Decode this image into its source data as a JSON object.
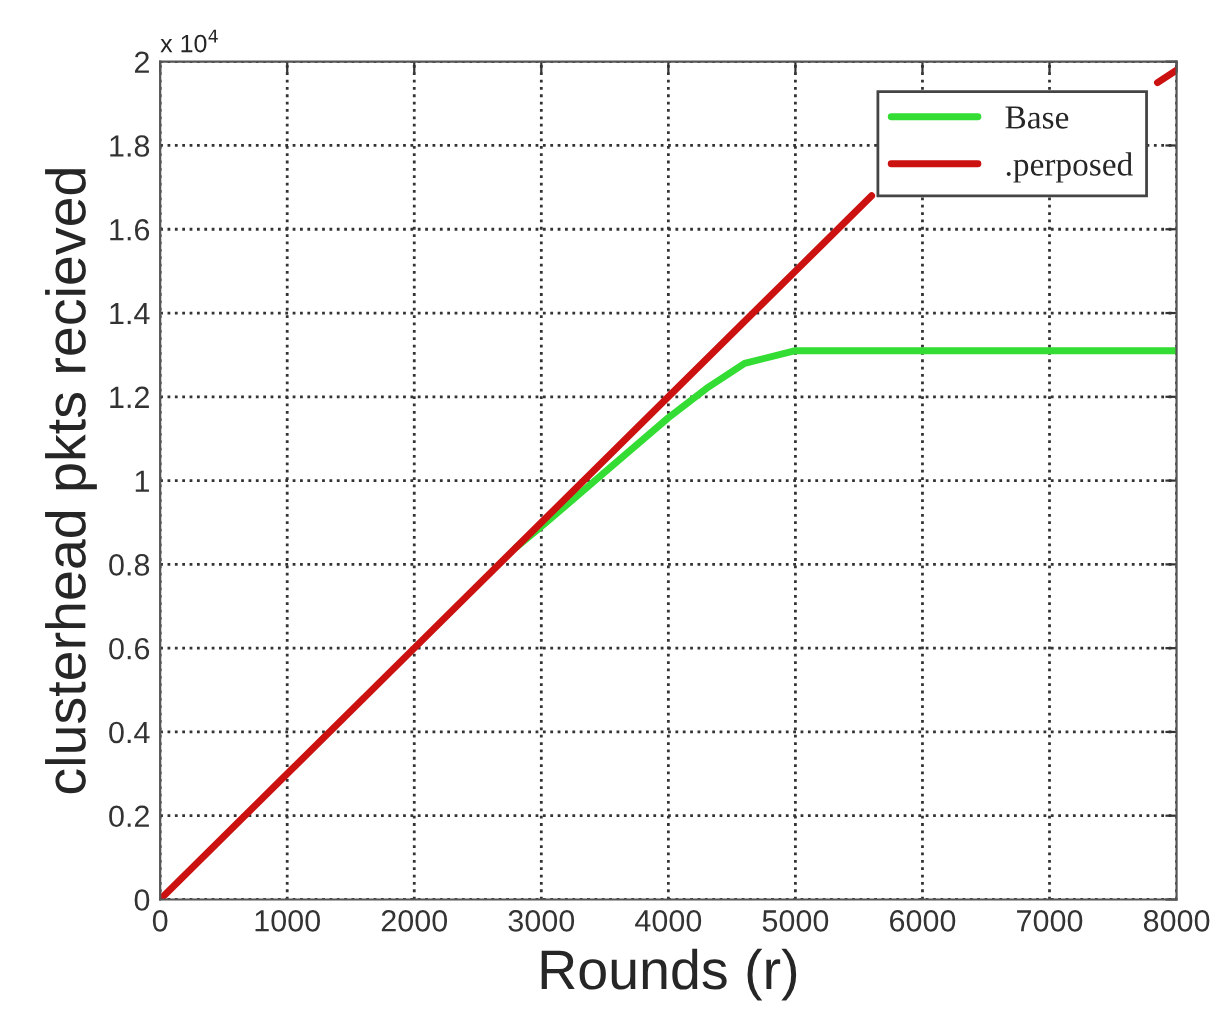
{
  "chart_data": {
    "type": "line",
    "xlabel": "Rounds (r)",
    "ylabel": "clusterhead pkts recieved",
    "annotations": [
      "x 10$^{4}$"
    ],
    "xlim": [
      0,
      8000
    ],
    "xticks": [
      0,
      1000,
      2000,
      3000,
      4000,
      5000,
      6000,
      7000,
      8000
    ],
    "ylim": [
      0,
      2
    ],
    "yticks": [
      0,
      0.2,
      0.4,
      0.6,
      0.8,
      1,
      1.2,
      1.4,
      1.6,
      1.8,
      2
    ],
    "grid": true,
    "legend": "top right",
    "line_style": "solid",
    "marker": "none",
    "series": [
      {
        "name": "Base",
        "color": "#33dd33",
        "x": [
          2800,
          3000,
          3500,
          4000,
          4300,
          4600,
          5000,
          8000
        ],
        "values": [
          0.84,
          0.89,
          1.02,
          1.15,
          1.22,
          1.28,
          1.31,
          1.31
        ]
      },
      {
        "name": ".perposed",
        "color": "#cc1111",
        "x": [
          0,
          1000,
          2000,
          3000,
          4000,
          5000,
          5600,
          6500,
          7850,
          8000
        ],
        "values": [
          0,
          0.3,
          0.6,
          0.9,
          1.2,
          1.5,
          1.68,
          null,
          1.95,
          1.98
        ]
      }
    ]
  }
}
